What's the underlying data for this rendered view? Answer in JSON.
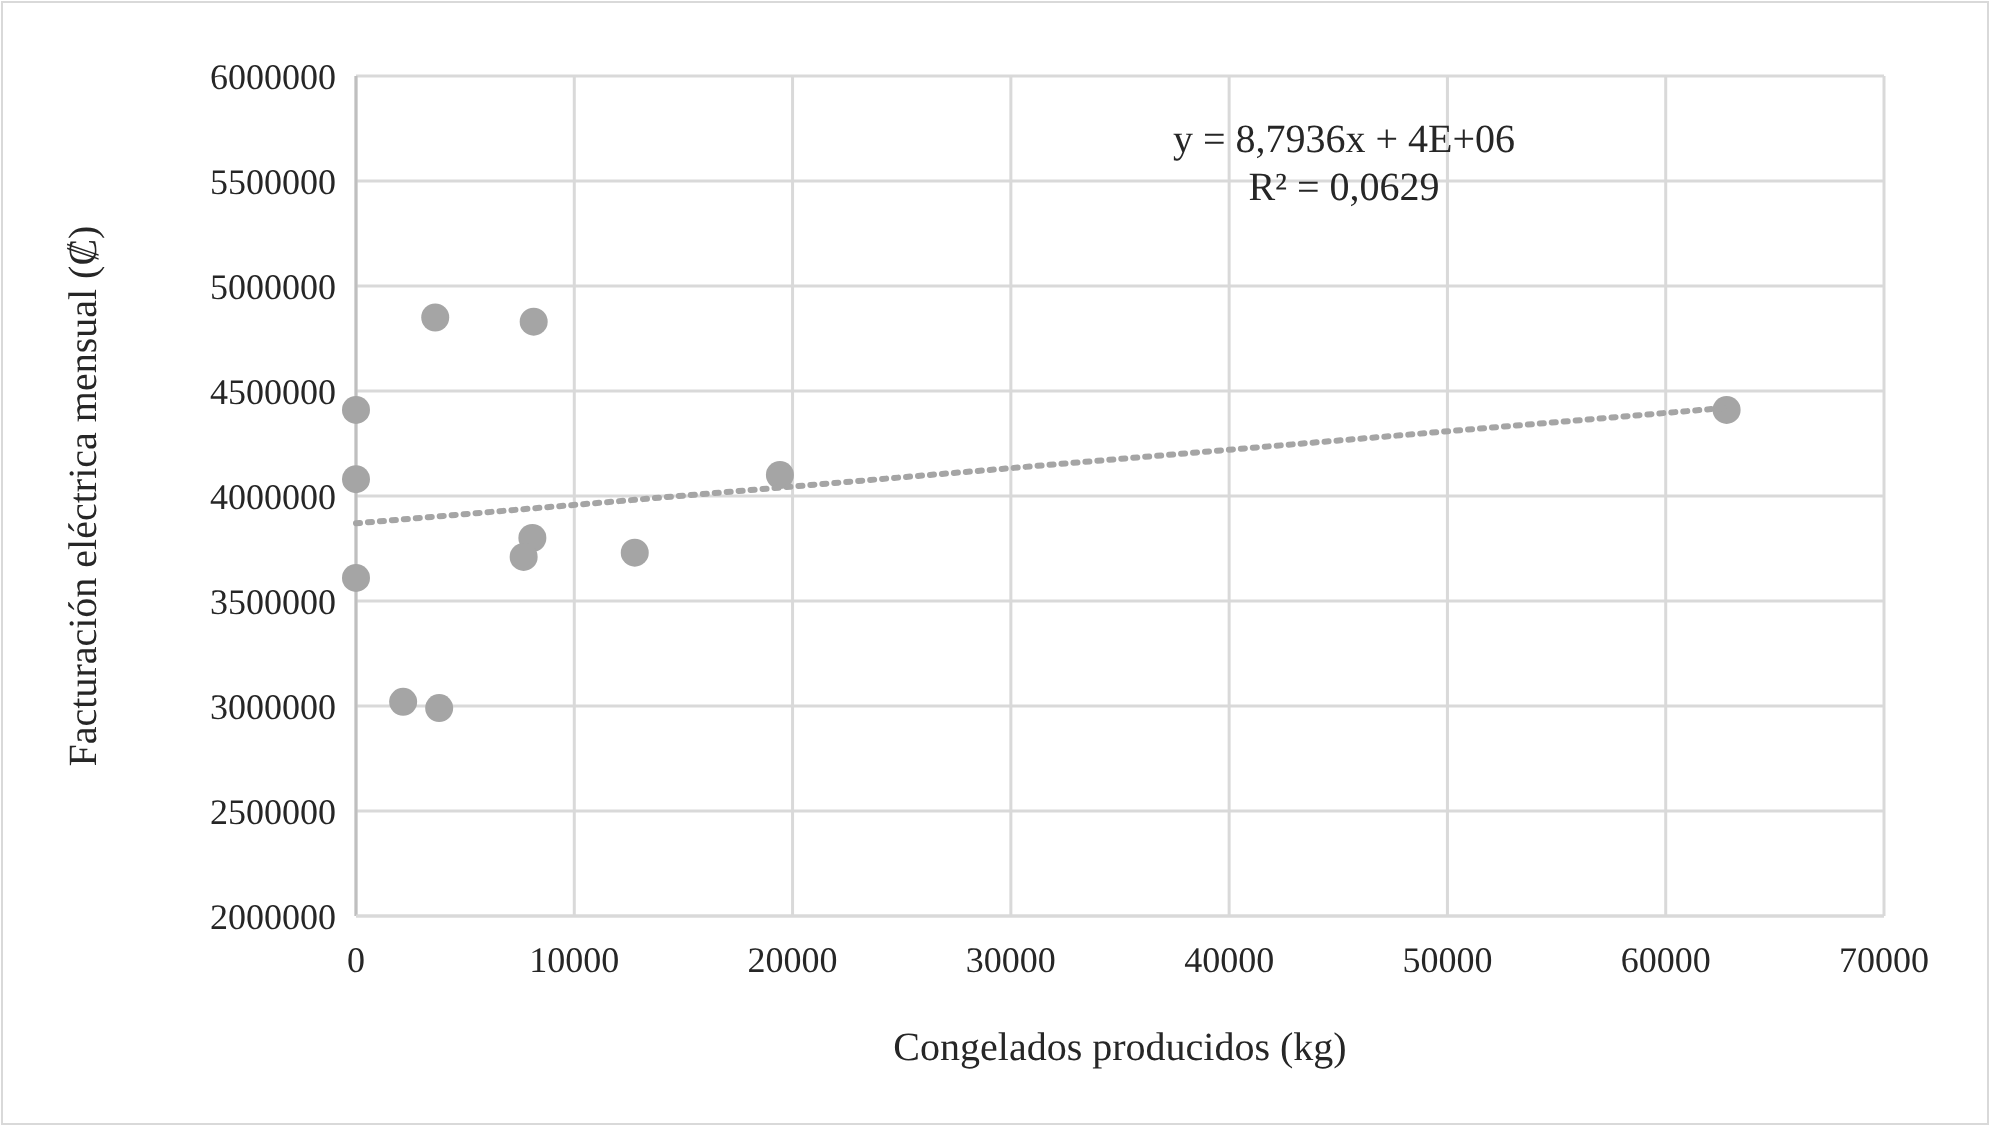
{
  "chart_data": {
    "type": "scatter",
    "xlabel": "Congelados producidos (kg)",
    "ylabel": "Facturación eléctrica mensual (₡)",
    "xlim": [
      0,
      70000
    ],
    "xticks": [
      0,
      10000,
      20000,
      30000,
      40000,
      50000,
      60000,
      70000
    ],
    "ylim": [
      2000000,
      6000000
    ],
    "yticks": [
      2000000,
      2500000,
      3000000,
      3500000,
      4000000,
      4500000,
      5000000,
      5500000,
      6000000
    ],
    "grid": true,
    "marker": "circle",
    "series": [
      {
        "color": "#a5a5a5",
        "x": [
          3630,
          8140,
          0,
          0,
          19420,
          8080,
          7680,
          12770,
          0,
          2160,
          3810,
          62790
        ],
        "values": [
          4850000,
          4830000,
          4410000,
          4080000,
          4100000,
          3800000,
          3710000,
          3730000,
          3610000,
          3020000,
          2990000,
          4410000
        ]
      },
      {
        "type": "line",
        "color": "#a5a5a5",
        "line_style": "dotted",
        "marker": "none",
        "x": [
          0,
          62790
        ],
        "values": [
          3870000,
          4420000
        ]
      }
    ],
    "annotations": [
      "y = 8,7936x + 4E+06",
      "R² = 0,0629"
    ]
  }
}
